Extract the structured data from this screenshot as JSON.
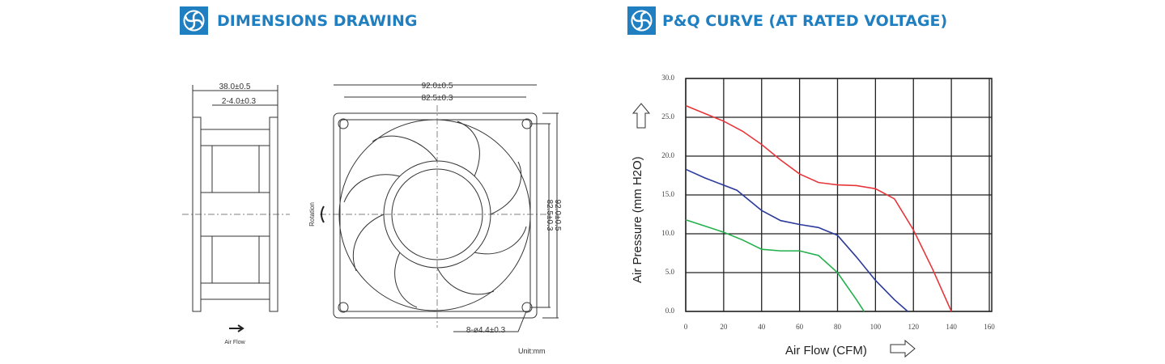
{
  "drawing": {
    "title": "DIMENSIONS DRAWING",
    "labels": [
      "38.0±0.5",
      "2-4.0±0.3",
      "92.0±0.5",
      "82.5±0.3",
      "82.5±0.3",
      "92.0±0.5",
      "8-ø4.4±0.3",
      "Rotation",
      "Air Flow",
      "Unit:mm"
    ]
  },
  "chart_data": {
    "type": "line",
    "title": "P&Q CURVE (AT RATED VOLTAGE)",
    "x_label": "Air Flow (CFM)",
    "y_label": "Air Pressure (mm H2O)",
    "xlim": [
      0,
      160
    ],
    "xticks": [
      0,
      20,
      40,
      60,
      80,
      100,
      120,
      140,
      160
    ],
    "ylim": [
      0,
      30
    ],
    "yticks": [
      {
        "value": 0,
        "label": "0.0"
      },
      {
        "value": 5,
        "label": "5.0"
      },
      {
        "value": 10,
        "label": "10.0"
      },
      {
        "value": 15,
        "label": "15.0"
      },
      {
        "value": 20,
        "label": "20.0"
      },
      {
        "value": 25,
        "label": "25.0"
      },
      {
        "value": 30,
        "label": "30.0"
      }
    ],
    "grid": true,
    "series": [
      {
        "color": "#e8353a",
        "x": [
          0,
          10,
          20,
          30,
          40,
          50,
          60,
          70,
          80,
          90,
          100,
          110,
          120,
          130,
          140
        ],
        "values": [
          26.5,
          25.5,
          24.5,
          23.2,
          21.5,
          19.5,
          17.7,
          16.6,
          16.3,
          16.2,
          15.8,
          14.5,
          10.5,
          5.5,
          0
        ]
      },
      {
        "color": "#2b3a9a",
        "x": [
          0,
          10,
          27,
          40,
          50,
          60,
          70,
          80,
          90,
          100,
          110,
          117
        ],
        "values": [
          18.3,
          17.2,
          15.6,
          13,
          11.7,
          11.2,
          10.8,
          9.8,
          7,
          4,
          1.5,
          0
        ]
      },
      {
        "color": "#22b04b",
        "x": [
          0,
          10,
          20,
          30,
          40,
          50,
          60,
          70,
          80,
          90,
          94
        ],
        "values": [
          11.8,
          11,
          10.2,
          9.2,
          8,
          7.8,
          7.8,
          7.2,
          5,
          1.5,
          0
        ]
      }
    ]
  }
}
